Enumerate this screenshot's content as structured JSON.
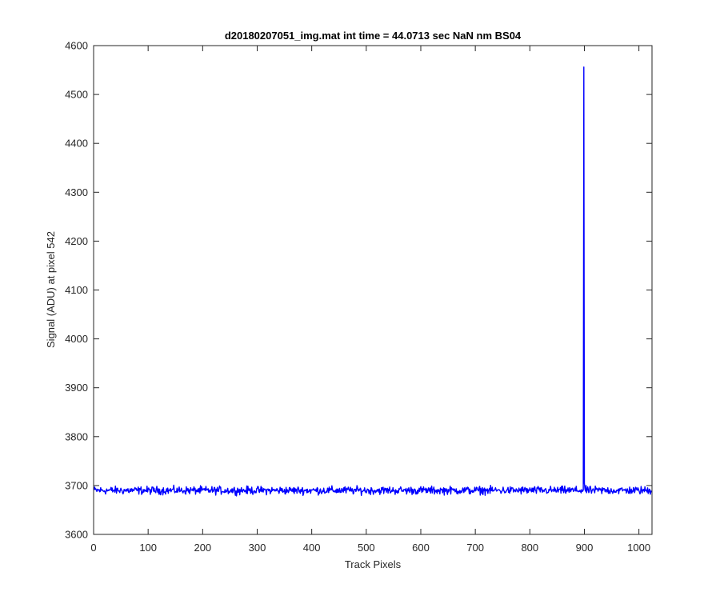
{
  "chart_data": {
    "type": "line",
    "title": "d20180207051_img.mat int time = 44.0713 sec  NaN nm BS04",
    "xlabel": "Track Pixels",
    "ylabel": "Signal (ADU) at pixel 542",
    "xlim": [
      0,
      1024
    ],
    "ylim": [
      3600,
      4600
    ],
    "xticks": [
      0,
      100,
      200,
      300,
      400,
      500,
      600,
      700,
      800,
      900,
      1000
    ],
    "yticks": [
      3600,
      3700,
      3800,
      3900,
      4000,
      4100,
      4200,
      4300,
      4400,
      4500,
      4600
    ],
    "grid": false,
    "legend": "none",
    "series": [
      {
        "color": "#0000ff",
        "baseline": 3690,
        "noise_amplitude": 12,
        "num_points": 1024,
        "spikes": [
          {
            "x": 899,
            "y": 4556
          },
          {
            "x": 900,
            "y": 3705
          }
        ]
      }
    ]
  }
}
